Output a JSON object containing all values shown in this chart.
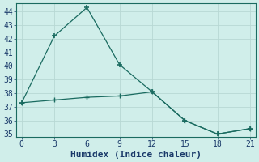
{
  "x": [
    0,
    3,
    6,
    9,
    12,
    15,
    18,
    21
  ],
  "line1_y": [
    37.3,
    42.2,
    44.3,
    40.1,
    38.1,
    36.0,
    35.0,
    35.4
  ],
  "line2_y": [
    37.3,
    37.5,
    37.7,
    37.8,
    38.1,
    36.0,
    35.0,
    35.4
  ],
  "line_color": "#1a6b60",
  "background_color": "#d0eeea",
  "grid_color": "#b8d8d4",
  "xlabel": "Humidex (Indice chaleur)",
  "ylim": [
    34.8,
    44.6
  ],
  "xlim": [
    -0.5,
    21.5
  ],
  "xticks": [
    0,
    3,
    6,
    9,
    12,
    15,
    18,
    21
  ],
  "yticks": [
    35,
    36,
    37,
    38,
    39,
    40,
    41,
    42,
    43,
    44
  ],
  "font_color": "#1a3a6a",
  "font_family": "monospace",
  "tick_fontsize": 7,
  "xlabel_fontsize": 8
}
